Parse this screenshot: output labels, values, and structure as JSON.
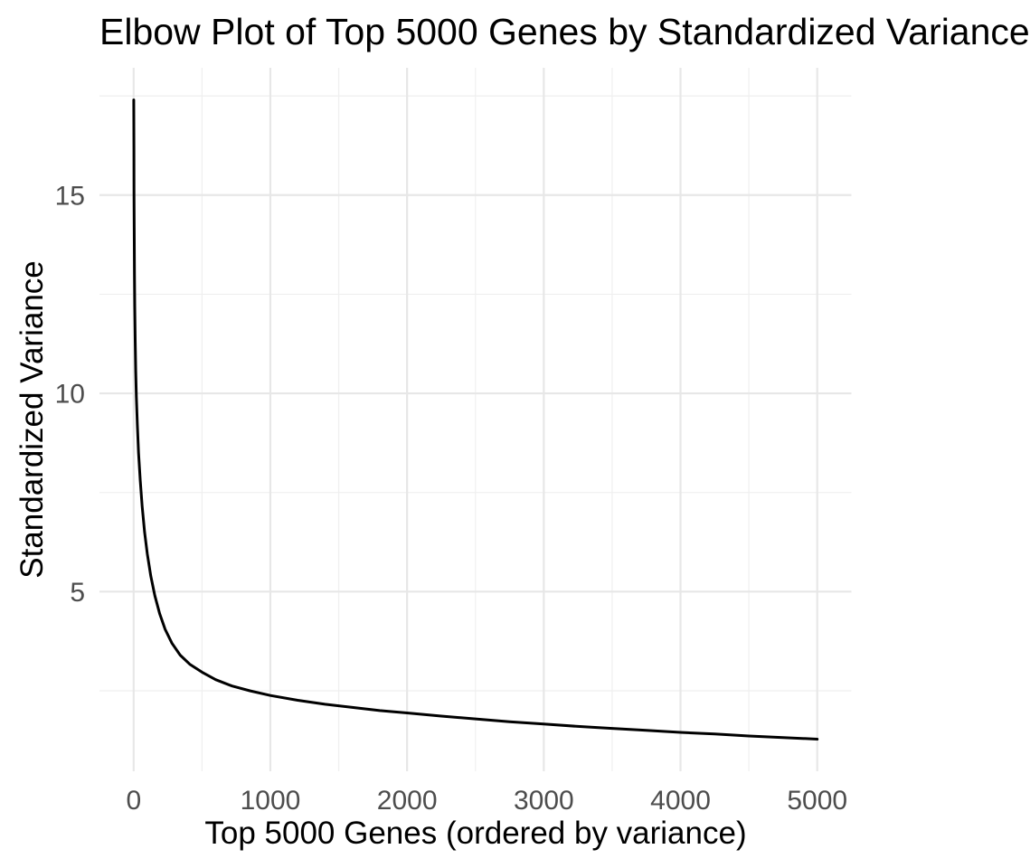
{
  "title": "Elbow Plot of Top 5000 Genes by Standardized Variance",
  "chart_data": {
    "type": "line",
    "title": "Elbow Plot of Top 5000 Genes by Standardized Variance",
    "xlabel": "Top 5000 Genes (ordered by variance)",
    "ylabel": "Standardized Variance",
    "x_tick_labels": [
      "0",
      "1000",
      "2000",
      "3000",
      "4000",
      "5000"
    ],
    "x_ticks": [
      0,
      1000,
      2000,
      3000,
      4000,
      5000
    ],
    "x_minor_ticks": [
      500,
      1500,
      2500,
      3500,
      4500
    ],
    "y_tick_labels": [
      "5",
      "10",
      "15"
    ],
    "y_ticks": [
      5,
      10,
      15
    ],
    "y_minor_ticks": [
      2.5,
      7.5,
      12.5,
      17.5
    ],
    "xlim": [
      -250,
      5250
    ],
    "ylim": [
      0.47,
      18.21
    ],
    "grid": "on",
    "legend": "none",
    "colors": {
      "line": "#000000",
      "grid_major": "#E7E7E7",
      "grid_minor": "#EFEFEF",
      "tick_label": "#4D4D4D",
      "title": "#000000",
      "background": "#FFFFFF"
    },
    "series": [
      {
        "name": "Standardized Variance",
        "points": [
          [
            1,
            17.4
          ],
          [
            2,
            16.15
          ],
          [
            3,
            15.0
          ],
          [
            4,
            14.2
          ],
          [
            6,
            13.0
          ],
          [
            8,
            12.2
          ],
          [
            11,
            11.35
          ],
          [
            15,
            10.55
          ],
          [
            20,
            9.9
          ],
          [
            27,
            9.2
          ],
          [
            36,
            8.5
          ],
          [
            48,
            7.8
          ],
          [
            62,
            7.15
          ],
          [
            80,
            6.5
          ],
          [
            100,
            5.95
          ],
          [
            125,
            5.4
          ],
          [
            155,
            4.9
          ],
          [
            190,
            4.45
          ],
          [
            230,
            4.05
          ],
          [
            280,
            3.7
          ],
          [
            340,
            3.4
          ],
          [
            410,
            3.17
          ],
          [
            500,
            2.97
          ],
          [
            600,
            2.78
          ],
          [
            720,
            2.62
          ],
          [
            850,
            2.5
          ],
          [
            1000,
            2.38
          ],
          [
            1200,
            2.26
          ],
          [
            1400,
            2.16
          ],
          [
            1600,
            2.08
          ],
          [
            1800,
            2.0
          ],
          [
            2000,
            1.94
          ],
          [
            2250,
            1.86
          ],
          [
            2500,
            1.79
          ],
          [
            2750,
            1.72
          ],
          [
            3000,
            1.66
          ],
          [
            3250,
            1.6
          ],
          [
            3500,
            1.55
          ],
          [
            3750,
            1.5
          ],
          [
            4000,
            1.45
          ],
          [
            4250,
            1.41
          ],
          [
            4500,
            1.36
          ],
          [
            4750,
            1.32
          ],
          [
            5000,
            1.28
          ]
        ]
      }
    ]
  }
}
